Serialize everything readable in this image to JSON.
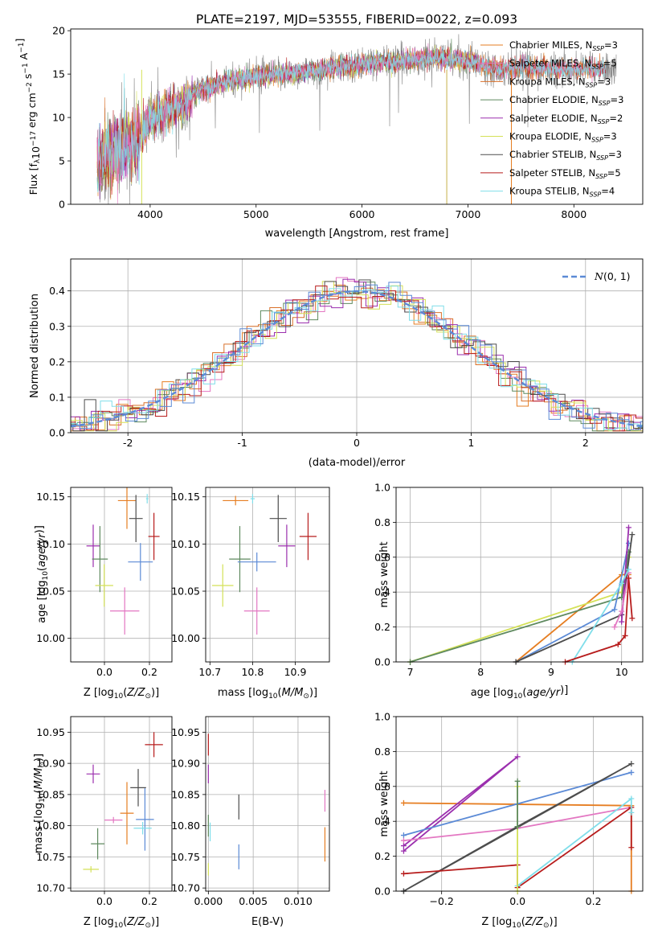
{
  "figure_title": "PLATE=2197, MJD=53555, FIBERID=0022, z=0.093",
  "colors": {
    "Chabrier MILES": "#e67e22",
    "Salpeter MILES": "#e377c2",
    "Kroupa MILES": "#d9712a",
    "Chabrier ELODIE": "#5f8a5f",
    "Salpeter ELODIE": "#9b2fae",
    "Kroupa ELODIE": "#d4e157",
    "Chabrier STELIB": "#4d4d4d",
    "Salpeter STELIB": "#b71c1c",
    "Kroupa STELIB": "#80deea",
    "blue": "#5b8ad6",
    "data": "#7f7f7f"
  },
  "chart_data": [
    {
      "id": "spectrum",
      "type": "line",
      "title": "PLATE=2197, MJD=53555, FIBERID=0022, z=0.093",
      "xlabel": "wavelength [Angstrom, rest frame]",
      "ylabel": "Flux [f",
      "xlim": [
        3250,
        8650
      ],
      "ylim": [
        0,
        20.2
      ],
      "xticks": [
        4000,
        5000,
        6000,
        7000,
        8000
      ],
      "yticks": [
        0,
        5,
        10,
        15,
        20
      ],
      "continuum": {
        "x": [
          3500,
          3600,
          3700,
          3800,
          3900,
          4000,
          4100,
          4200,
          4300,
          4400,
          4500,
          4700,
          4900,
          5100,
          5300,
          5500,
          5700,
          5900,
          6100,
          6300,
          6500,
          6700,
          6900,
          7100,
          7300,
          7500,
          7700,
          7900,
          8100,
          8300
        ],
        "y": [
          4.5,
          5.5,
          6.3,
          6.8,
          7.6,
          9.8,
          10.5,
          11.0,
          11.3,
          12.5,
          13.3,
          14.0,
          14.6,
          14.8,
          15.0,
          15.3,
          15.7,
          16.0,
          16.3,
          16.4,
          16.7,
          16.9,
          16.7,
          16.2,
          15.6,
          15.9,
          15.7,
          15.5,
          15.7,
          15.6
        ]
      },
      "legend": [
        {
          "name": "Chabrier MILES",
          "sub": "SSP",
          "n": "3"
        },
        {
          "name": "Salpeter MILES",
          "sub": "SSP",
          "n": "5"
        },
        {
          "name": "Kroupa MILES",
          "sub": "SSP",
          "n": "3"
        },
        {
          "name": "Chabrier ELODIE",
          "sub": "SSP",
          "n": "3"
        },
        {
          "name": "Salpeter ELODIE",
          "sub": "SSP",
          "n": "2"
        },
        {
          "name": "Kroupa ELODIE",
          "sub": "SSP",
          "n": "3"
        },
        {
          "name": "Chabrier STELIB",
          "sub": "SSP",
          "n": "3"
        },
        {
          "name": "Salpeter STELIB",
          "sub": "SSP",
          "n": "5"
        },
        {
          "name": "Kroupa STELIB",
          "sub": "SSP",
          "n": "4"
        }
      ]
    },
    {
      "id": "residuals",
      "type": "line",
      "xlabel": "(data-model)/error",
      "ylabel": "Normed distribution",
      "xlim": [
        -2.5,
        2.5
      ],
      "ylim": [
        0,
        0.49
      ],
      "xticks": [
        -2,
        -1,
        0,
        1,
        2
      ],
      "yticks": [
        0.0,
        0.1,
        0.2,
        0.3,
        0.4
      ],
      "legend": "top-right",
      "gaussian_label": "N(0,1)",
      "bin_width": 0.1
    },
    {
      "id": "age_vs_Z",
      "type": "scatter",
      "xlabel": "Z [log10(Z/Z⊙)]",
      "ylabel": "age  [log10(age/yr)]",
      "xlim": [
        -0.15,
        0.3
      ],
      "ylim": [
        9.975,
        10.16
      ],
      "xticks": [
        0.0,
        0.2
      ],
      "yticks": [
        10.0,
        10.05,
        10.1,
        10.15
      ],
      "points": [
        {
          "c": "Salpeter ELODIE",
          "x": -0.05,
          "y": 10.098,
          "xe": 0.06,
          "ye": 0.045
        },
        {
          "c": "Chabrier ELODIE",
          "x": -0.02,
          "y": 10.084,
          "xe": 0.07,
          "ye": 0.07
        },
        {
          "c": "Kroupa ELODIE",
          "x": -0.001,
          "y": 10.056,
          "xe": 0.08,
          "ye": 0.045
        },
        {
          "c": "Chabrier MILES",
          "x": 0.1,
          "y": 10.146,
          "xe": 0.08,
          "ye": 0.06
        },
        {
          "c": "Chabrier STELIB",
          "x": 0.14,
          "y": 10.127,
          "xe": 0.06,
          "ye": 0.05
        },
        {
          "c": "Salpeter STELIB",
          "x": 0.22,
          "y": 10.108,
          "xe": 0.05,
          "ye": 0.05
        },
        {
          "c": "blue",
          "x": 0.16,
          "y": 10.081,
          "xe": 0.11,
          "ye": 0.04
        },
        {
          "c": "Salpeter MILES",
          "x": 0.09,
          "y": 10.029,
          "xe": 0.13,
          "ye": 0.05
        },
        {
          "c": "Kroupa STELIB",
          "x": 0.19,
          "y": 10.148,
          "xe": 0.01,
          "ye": 0.01
        }
      ]
    },
    {
      "id": "age_vs_mass",
      "type": "scatter",
      "xlabel": "mass [log10(M/M⊙)]",
      "xlim": [
        10.69,
        10.98
      ],
      "ylim": [
        9.975,
        10.16
      ],
      "xticks": [
        10.7,
        10.8,
        10.9
      ],
      "yticks": [
        10.0,
        10.05,
        10.1,
        10.15
      ],
      "points": [
        {
          "c": "Salpeter ELODIE",
          "x": 10.88,
          "y": 10.098,
          "xe": 0.04,
          "ye": 0.045
        },
        {
          "c": "Chabrier ELODIE",
          "x": 10.77,
          "y": 10.084,
          "xe": 0.05,
          "ye": 0.07
        },
        {
          "c": "Kroupa ELODIE",
          "x": 10.73,
          "y": 10.056,
          "xe": 0.05,
          "ye": 0.045
        },
        {
          "c": "Chabrier MILES",
          "x": 10.76,
          "y": 10.146,
          "xe": 0.06,
          "ye": 0.01
        },
        {
          "c": "Chabrier STELIB",
          "x": 10.86,
          "y": 10.127,
          "xe": 0.04,
          "ye": 0.05
        },
        {
          "c": "Salpeter STELIB",
          "x": 10.93,
          "y": 10.108,
          "xe": 0.04,
          "ye": 0.05
        },
        {
          "c": "blue",
          "x": 10.81,
          "y": 10.081,
          "xe": 0.09,
          "ye": 0.02
        },
        {
          "c": "Salpeter MILES",
          "x": 10.81,
          "y": 10.029,
          "xe": 0.06,
          "ye": 0.05
        },
        {
          "c": "Kroupa STELIB",
          "x": 10.8,
          "y": 10.148,
          "xe": 0.01,
          "ye": 0.01
        }
      ]
    },
    {
      "id": "weight_vs_age",
      "type": "line",
      "xlabel": "age  [log10(age/yr)]",
      "ylabel": "mass weight",
      "xlim": [
        6.8,
        10.3
      ],
      "ylim": [
        0,
        1
      ],
      "xticks": [
        7,
        8,
        9,
        10
      ],
      "yticks": [
        0.0,
        0.2,
        0.4,
        0.6,
        0.8,
        1.0
      ],
      "series": [
        {
          "c": "Chabrier MILES",
          "x": [
            8.5,
            10.0,
            10.1
          ],
          "y": [
            0.0,
            0.5,
            0.5
          ]
        },
        {
          "c": "Kroupa ELODIE",
          "x": [
            7.0,
            10.0,
            10.1
          ],
          "y": [
            0.0,
            0.4,
            0.6
          ]
        },
        {
          "c": "Chabrier ELODIE",
          "x": [
            7.0,
            10.0,
            10.1
          ],
          "y": [
            0.0,
            0.37,
            0.63
          ]
        },
        {
          "c": "blue",
          "x": [
            8.5,
            9.9,
            10.1
          ],
          "y": [
            0.0,
            0.3,
            0.68
          ]
        },
        {
          "c": "Chabrier STELIB",
          "x": [
            8.5,
            10.0,
            10.15
          ],
          "y": [
            0.0,
            0.27,
            0.73
          ]
        },
        {
          "c": "Salpeter ELODIE",
          "x": [
            10.0,
            10.1
          ],
          "y": [
            0.23,
            0.77
          ]
        },
        {
          "c": "Salpeter MILES",
          "x": [
            9.9,
            10.0,
            10.1
          ],
          "y": [
            0.2,
            0.29,
            0.51
          ]
        },
        {
          "c": "Kroupa STELIB",
          "x": [
            9.3,
            10.0,
            10.1
          ],
          "y": [
            0.0,
            0.45,
            0.53
          ]
        },
        {
          "c": "Salpeter STELIB",
          "x": [
            9.2,
            9.95,
            10.05,
            10.1,
            10.15
          ],
          "y": [
            0.0,
            0.1,
            0.15,
            0.48,
            0.25
          ]
        }
      ]
    },
    {
      "id": "mass_vs_Z",
      "type": "scatter",
      "xlabel": "Z [log10(Z/Z⊙)]",
      "ylabel": "mass [log10(M/M⊙)]",
      "xlim": [
        -0.15,
        0.3
      ],
      "ylim": [
        10.695,
        10.975
      ],
      "xticks": [
        0.0,
        0.2
      ],
      "yticks": [
        10.7,
        10.75,
        10.8,
        10.85,
        10.9,
        10.95
      ],
      "points": [
        {
          "c": "Salpeter ELODIE",
          "x": -0.05,
          "y": 10.883,
          "xe": 0.06,
          "ye": 0.03
        },
        {
          "c": "Chabrier ELODIE",
          "x": -0.03,
          "y": 10.771,
          "xe": 0.06,
          "ye": 0.05
        },
        {
          "c": "Kroupa ELODIE",
          "x": -0.06,
          "y": 10.73,
          "xe": 0.07,
          "ye": 0.01
        },
        {
          "c": "Chabrier MILES",
          "x": 0.1,
          "y": 10.82,
          "xe": 0.06,
          "ye": 0.1
        },
        {
          "c": "Chabrier STELIB",
          "x": 0.15,
          "y": 10.861,
          "xe": 0.07,
          "ye": 0.06
        },
        {
          "c": "Salpeter STELIB",
          "x": 0.22,
          "y": 10.93,
          "xe": 0.08,
          "ye": 0.04
        },
        {
          "c": "blue",
          "x": 0.18,
          "y": 10.81,
          "xe": 0.08,
          "ye": 0.1
        },
        {
          "c": "Salpeter MILES",
          "x": 0.04,
          "y": 10.809,
          "xe": 0.08,
          "ye": 0.01
        },
        {
          "c": "Kroupa STELIB",
          "x": 0.17,
          "y": 10.796,
          "xe": 0.08,
          "ye": 0.02
        }
      ]
    },
    {
      "id": "mass_vs_ebv",
      "type": "scatter",
      "xlabel": "E(B-V)",
      "xlim": [
        -0.0003,
        0.0135
      ],
      "ylim": [
        10.695,
        10.975
      ],
      "xticks": [
        0.0,
        0.005,
        0.01
      ],
      "yticks": [
        10.7,
        10.75,
        10.8,
        10.85,
        10.9,
        10.95
      ],
      "points": [
        {
          "c": "Salpeter STELIB",
          "x": 0.0,
          "y": 10.93,
          "xe": 0,
          "ye": 0.035
        },
        {
          "c": "Salpeter ELODIE",
          "x": 0.0,
          "y": 10.883,
          "xe": 0,
          "ye": 0.03
        },
        {
          "c": "Chabrier ELODIE",
          "x": 0.0,
          "y": 10.8,
          "xe": 0,
          "ye": 0.035
        },
        {
          "c": "Kroupa ELODIE",
          "x": 0.0,
          "y": 10.73,
          "xe": 0,
          "ye": 0.02
        },
        {
          "c": "Kroupa STELIB",
          "x": 0.0002,
          "y": 10.79,
          "xe": 0,
          "ye": 0.03
        },
        {
          "c": "Chabrier STELIB",
          "x": 0.0034,
          "y": 10.83,
          "xe": 0,
          "ye": 0.04
        },
        {
          "c": "blue",
          "x": 0.0034,
          "y": 10.75,
          "xe": 0,
          "ye": 0.04
        },
        {
          "c": "Salpeter MILES",
          "x": 0.013,
          "y": 10.84,
          "xe": 0,
          "ye": 0.035
        },
        {
          "c": "Chabrier MILES",
          "x": 0.013,
          "y": 10.77,
          "xe": 0,
          "ye": 0.055
        }
      ]
    },
    {
      "id": "weight_vs_Z",
      "type": "line",
      "xlabel": "Z [log10(Z/Z⊙)]",
      "ylabel": "mass weight",
      "xlim": [
        -0.32,
        0.33
      ],
      "ylim": [
        0,
        1
      ],
      "xticks": [
        -0.2,
        0.0,
        0.2
      ],
      "yticks": [
        0.0,
        0.2,
        0.4,
        0.6,
        0.8,
        1.0
      ],
      "series": [
        {
          "c": "Chabrier MILES",
          "x": [
            -0.3,
            0.3,
            0.3
          ],
          "y": [
            0.505,
            0.49,
            0.0
          ]
        },
        {
          "c": "Salpeter ELODIE",
          "x": [
            -0.3,
            0.0,
            -0.3
          ],
          "y": [
            0.23,
            0.77,
            0.26
          ]
        },
        {
          "c": "blue",
          "x": [
            -0.3,
            0.0,
            0.3
          ],
          "y": [
            0.32,
            0.5,
            0.68
          ]
        },
        {
          "c": "Salpeter MILES",
          "x": [
            -0.3,
            0.0,
            0.3
          ],
          "y": [
            0.29,
            0.36,
            0.48
          ]
        },
        {
          "c": "Chabrier STELIB",
          "x": [
            -0.3,
            0.0,
            0.3,
            -0.3
          ],
          "y": [
            0.0,
            0.37,
            0.73,
            0.0
          ]
        },
        {
          "c": "Salpeter STELIB",
          "x": [
            -0.3,
            0.0,
            0.0,
            0.3,
            0.3
          ],
          "y": [
            0.1,
            0.15,
            0.02,
            0.48,
            0.25
          ]
        },
        {
          "c": "Kroupa STELIB",
          "x": [
            0.0,
            0.3,
            0.3
          ],
          "y": [
            0.03,
            0.53,
            0.45
          ]
        },
        {
          "c": "Kroupa ELODIE",
          "x": [
            0.0,
            0.0
          ],
          "y": [
            0.0,
            0.6
          ]
        },
        {
          "c": "Chabrier ELODIE",
          "x": [
            0.0,
            0.0
          ],
          "y": [
            0.37,
            0.63
          ]
        }
      ]
    }
  ]
}
